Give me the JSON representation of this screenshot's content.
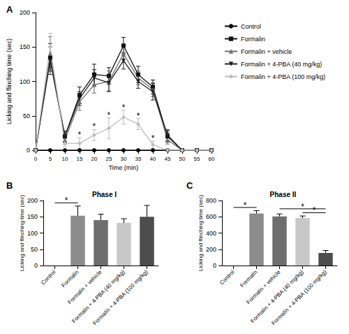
{
  "chart_data": [
    {
      "type": "line",
      "panel": "A",
      "x": [
        0,
        5,
        10,
        15,
        20,
        25,
        30,
        35,
        40,
        45,
        50,
        55,
        60
      ],
      "xlim": [
        0,
        60
      ],
      "xticks": [
        0,
        5,
        10,
        15,
        20,
        25,
        30,
        35,
        40,
        45,
        50,
        55,
        60
      ],
      "ylim": [
        0,
        200
      ],
      "yticks": [
        0,
        50,
        100,
        150,
        200
      ],
      "x_label": "Time (min)",
      "y_label": "Licking and flinching time (sec)",
      "grid": false,
      "legend": "right",
      "series": [
        {
          "name": "Control",
          "color": "#000000",
          "marker": "circle",
          "values": [
            0,
            0,
            0,
            0,
            0,
            0,
            0,
            0,
            0,
            0,
            0,
            0,
            0
          ],
          "errors": [
            0,
            0,
            0,
            0,
            0,
            0,
            0,
            0,
            0,
            0,
            0,
            0,
            0
          ]
        },
        {
          "name": "Formalin",
          "color": "#111111",
          "marker": "square",
          "values": [
            0,
            135,
            20,
            80,
            110,
            108,
            152,
            110,
            92,
            20,
            0,
            0,
            0
          ],
          "errors": [
            0,
            20,
            8,
            12,
            15,
            12,
            12,
            12,
            10,
            8,
            0,
            0,
            0
          ]
        },
        {
          "name": "Formalin + vehicle",
          "color": "#6e6e6e",
          "marker": "triangle",
          "values": [
            0,
            140,
            15,
            70,
            95,
            100,
            140,
            105,
            88,
            15,
            0,
            0,
            0
          ],
          "errors": [
            0,
            25,
            6,
            12,
            12,
            15,
            12,
            10,
            10,
            6,
            0,
            0,
            0
          ]
        },
        {
          "name": "Formalin + 4-PBA (40 mg/kg)",
          "color": "#222222",
          "marker": "triangle-down",
          "values": [
            0,
            130,
            20,
            75,
            105,
            98,
            130,
            100,
            85,
            22,
            0,
            0,
            0
          ],
          "errors": [
            0,
            20,
            8,
            10,
            12,
            12,
            12,
            10,
            12,
            8,
            0,
            0,
            0
          ]
        },
        {
          "name": "Formalin + 4-PBA (100 mg/kg)",
          "color": "#bdbdbd",
          "marker": "diamond",
          "values": [
            0,
            150,
            10,
            10,
            22,
            32,
            48,
            38,
            8,
            0,
            0,
            0,
            0
          ],
          "errors": [
            0,
            20,
            5,
            8,
            8,
            15,
            10,
            8,
            5,
            0,
            0,
            0,
            0
          ]
        }
      ],
      "annotations": [
        {
          "series": "Formalin + 4-PBA (100 mg/kg)",
          "x": 15,
          "text": "*"
        },
        {
          "series": "Formalin + 4-PBA (100 mg/kg)",
          "x": 20,
          "text": "*"
        },
        {
          "series": "Formalin + 4-PBA (100 mg/kg)",
          "x": 25,
          "text": "*"
        },
        {
          "series": "Formalin + 4-PBA (100 mg/kg)",
          "x": 30,
          "text": "*"
        },
        {
          "series": "Formalin + 4-PBA (100 mg/kg)",
          "x": 35,
          "text": "*"
        },
        {
          "series": "Formalin + 4-PBA (100 mg/kg)",
          "x": 40,
          "text": "*"
        }
      ]
    },
    {
      "type": "bar",
      "panel": "B",
      "title": "Phase I",
      "categories": [
        "Control",
        "Formalin",
        "Formalin + vehicle",
        "Formalin + 4-PBA (40 mg/kg)",
        "Formalin + 4-PBA (100 mg/kg)"
      ],
      "values": [
        0,
        153,
        140,
        131,
        150
      ],
      "errors": [
        0,
        30,
        18,
        13,
        35
      ],
      "colors": [
        "#8c8c8c",
        "#8c8c8c",
        "#6e6e6e",
        "#c8c8c8",
        "#4d4d4d"
      ],
      "ylim": [
        0,
        200
      ],
      "yticks": [
        0,
        50,
        100,
        150,
        200
      ],
      "y_label": "Licking and flinching time (sec)",
      "grid": false,
      "brackets": [
        {
          "from": "Control",
          "to": "Formalin",
          "text": "*"
        }
      ]
    },
    {
      "type": "bar",
      "panel": "C",
      "title": "Phase II",
      "categories": [
        "Control",
        "Formalin",
        "Formalin + vehicle",
        "Formalin + 4-PBA (40 mg/kg)",
        "Formalin + 4-PBA (100 mg/kg)"
      ],
      "values": [
        0,
        640,
        605,
        585,
        155
      ],
      "errors": [
        0,
        35,
        30,
        25,
        30
      ],
      "colors": [
        "#8c8c8c",
        "#8c8c8c",
        "#6e6e6e",
        "#c8c8c8",
        "#4d4d4d"
      ],
      "ylim": [
        0,
        800
      ],
      "yticks": [
        0,
        200,
        400,
        600,
        800
      ],
      "y_label": "Licking and flinching time (sec)",
      "grid": false,
      "brackets": [
        {
          "from": "Control",
          "to": "Formalin",
          "text": "*"
        },
        {
          "from": "Formalin + vehicle",
          "to": "Formalin + 4-PBA (100 mg/kg)",
          "text": "*"
        },
        {
          "from": "Formalin + 4-PBA (40 mg/kg)",
          "to": "Formalin + 4-PBA (100 mg/kg)",
          "text": "*"
        }
      ]
    }
  ]
}
